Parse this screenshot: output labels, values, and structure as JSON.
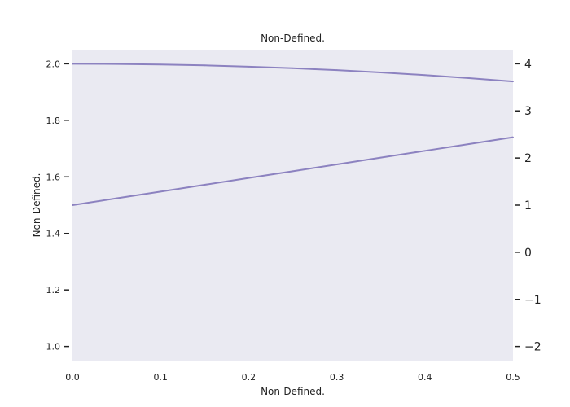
{
  "chart_data": {
    "type": "line",
    "title": "Non-Defined.",
    "xlabel": "Non-Defined.",
    "ylabel": "Non-Defined.",
    "xlim": [
      0.0,
      0.5
    ],
    "ylim": [
      0.95,
      2.05
    ],
    "y2lim": [
      -2.3,
      4.3
    ],
    "grid": false,
    "x_ticks": [
      0.0,
      0.1,
      0.2,
      0.3,
      0.4,
      0.5
    ],
    "x_tick_labels": [
      "0.0",
      "0.1",
      "0.2",
      "0.3",
      "0.4",
      "0.5"
    ],
    "y_ticks": [
      1.0,
      1.2,
      1.4,
      1.6,
      1.8,
      2.0
    ],
    "y_tick_labels": [
      "1.0",
      "1.2",
      "1.4",
      "1.6",
      "1.8",
      "2.0"
    ],
    "y2_ticks": [
      -2,
      -1,
      0,
      1,
      2,
      3,
      4
    ],
    "y2_tick_labels": [
      "−2",
      "−1",
      "0",
      "1",
      "2",
      "3",
      "4"
    ],
    "x": [
      0.0,
      0.05,
      0.1,
      0.15,
      0.2,
      0.25,
      0.3,
      0.35,
      0.4,
      0.45,
      0.5
    ],
    "series": [
      {
        "axis": "left",
        "values": [
          2.0,
          1.9994,
          1.9975,
          1.9944,
          1.99,
          1.9844,
          1.9776,
          1.9694,
          1.96,
          1.9494,
          1.9375
        ],
        "color": "#8c82c0"
      },
      {
        "axis": "left",
        "values": [
          1.5,
          1.524,
          1.548,
          1.572,
          1.596,
          1.62,
          1.644,
          1.668,
          1.692,
          1.716,
          1.74
        ],
        "color": "#8c82c0"
      }
    ],
    "colors": {
      "plot_background": "#eaeaf2",
      "line": "#8c82c0",
      "text": "#222222"
    }
  }
}
